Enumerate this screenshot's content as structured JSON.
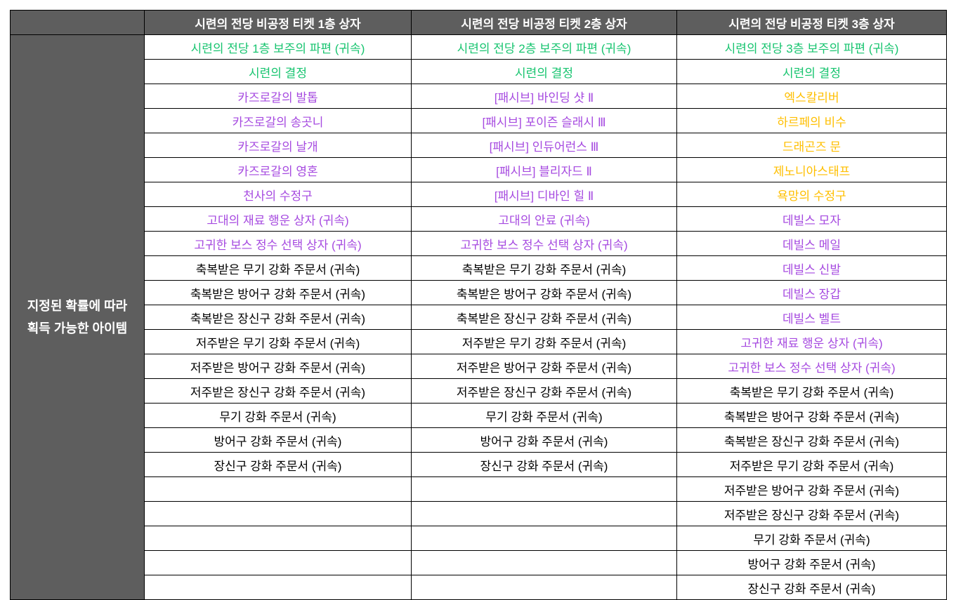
{
  "colors": {
    "page_bg": "#ffffff",
    "header_bg": "#5e5e5e",
    "header_text": "#ffffff",
    "border": "#000000",
    "tier_green": "#17c46f",
    "tier_purple": "#a64ae0",
    "tier_gold": "#ffbf00",
    "tier_normal": "#000000"
  },
  "table": {
    "corner": "",
    "row_count": 23,
    "row_header_lines": [
      "지정된 확률에 따라",
      "획득 가능한 아이템"
    ],
    "columns": [
      {
        "header": "시련의 전당 비공정 티켓 1층 상자",
        "items": [
          {
            "text": "시련의 전당 1층 보주의 파편 (귀속)",
            "tier": "green"
          },
          {
            "text": "시련의 결정",
            "tier": "green"
          },
          {
            "text": "카즈로갈의 발톱",
            "tier": "purple"
          },
          {
            "text": "카즈로갈의 송곳니",
            "tier": "purple"
          },
          {
            "text": "카즈로갈의 날개",
            "tier": "purple"
          },
          {
            "text": "카즈로갈의 영혼",
            "tier": "purple"
          },
          {
            "text": "천사의 수정구",
            "tier": "purple"
          },
          {
            "text": "고대의 재료 행운 상자 (귀속)",
            "tier": "purple"
          },
          {
            "text": "고귀한 보스 정수 선택 상자 (귀속)",
            "tier": "purple"
          },
          {
            "text": "축복받은 무기 강화 주문서 (귀속)",
            "tier": "normal"
          },
          {
            "text": "축복받은 방어구 강화 주문서 (귀속)",
            "tier": "normal"
          },
          {
            "text": "축복받은 장신구 강화 주문서 (귀속)",
            "tier": "normal"
          },
          {
            "text": "저주받은 무기 강화 주문서 (귀속)",
            "tier": "normal"
          },
          {
            "text": "저주받은 방어구 강화 주문서 (귀속)",
            "tier": "normal"
          },
          {
            "text": "저주받은 장신구 강화 주문서 (귀속)",
            "tier": "normal"
          },
          {
            "text": "무기 강화 주문서 (귀속)",
            "tier": "normal"
          },
          {
            "text": "방어구 강화 주문서 (귀속)",
            "tier": "normal"
          },
          {
            "text": "장신구 강화 주문서 (귀속)",
            "tier": "normal"
          }
        ]
      },
      {
        "header": "시련의 전당 비공정 티켓 2층 상자",
        "items": [
          {
            "text": "시련의 전당 2층 보주의 파편 (귀속)",
            "tier": "green"
          },
          {
            "text": "시련의 결정",
            "tier": "green"
          },
          {
            "text": "[패시브] 바인딩 샷 Ⅱ",
            "tier": "purple"
          },
          {
            "text": "[패시브] 포이즌 슬래시 Ⅲ",
            "tier": "purple"
          },
          {
            "text": "[패시브] 인듀어런스 Ⅲ",
            "tier": "purple"
          },
          {
            "text": "[패시브] 블리자드 Ⅱ",
            "tier": "purple"
          },
          {
            "text": "[패시브] 디바인 힐 Ⅱ",
            "tier": "purple"
          },
          {
            "text": "고대의 안료 (귀속)",
            "tier": "purple"
          },
          {
            "text": "고귀한 보스 정수 선택 상자 (귀속)",
            "tier": "purple"
          },
          {
            "text": "축복받은 무기 강화 주문서 (귀속)",
            "tier": "normal"
          },
          {
            "text": "축복받은 방어구 강화 주문서 (귀속)",
            "tier": "normal"
          },
          {
            "text": "축복받은 장신구 강화 주문서 (귀속)",
            "tier": "normal"
          },
          {
            "text": "저주받은 무기 강화 주문서 (귀속)",
            "tier": "normal"
          },
          {
            "text": "저주받은 방어구 강화 주문서 (귀속)",
            "tier": "normal"
          },
          {
            "text": "저주받은 장신구 강화 주문서 (귀속)",
            "tier": "normal"
          },
          {
            "text": "무기 강화 주문서 (귀속)",
            "tier": "normal"
          },
          {
            "text": "방어구 강화 주문서 (귀속)",
            "tier": "normal"
          },
          {
            "text": "장신구 강화 주문서 (귀속)",
            "tier": "normal"
          }
        ]
      },
      {
        "header": "시련의 전당 비공정 티켓 3층 상자",
        "items": [
          {
            "text": "시련의 전당 3층 보주의 파편 (귀속)",
            "tier": "green"
          },
          {
            "text": "시련의 결정",
            "tier": "green"
          },
          {
            "text": "엑스칼리버",
            "tier": "gold"
          },
          {
            "text": "하르페의 비수",
            "tier": "gold"
          },
          {
            "text": "드래곤즈 문",
            "tier": "gold"
          },
          {
            "text": "제노니아스태프",
            "tier": "gold"
          },
          {
            "text": "욕망의 수정구",
            "tier": "gold"
          },
          {
            "text": "데빌스 모자",
            "tier": "purple"
          },
          {
            "text": "데빌스 메일",
            "tier": "purple"
          },
          {
            "text": "데빌스 신발",
            "tier": "purple"
          },
          {
            "text": "데빌스 장갑",
            "tier": "purple"
          },
          {
            "text": "데빌스 벨트",
            "tier": "purple"
          },
          {
            "text": "고귀한 재료 행운 상자 (귀속)",
            "tier": "purple"
          },
          {
            "text": "고귀한 보스 정수 선택 상자 (귀속)",
            "tier": "purple"
          },
          {
            "text": "축복받은 무기 강화 주문서 (귀속)",
            "tier": "normal"
          },
          {
            "text": "축복받은 방어구 강화 주문서 (귀속)",
            "tier": "normal"
          },
          {
            "text": "축복받은 장신구 강화 주문서 (귀속)",
            "tier": "normal"
          },
          {
            "text": "저주받은 무기 강화 주문서 (귀속)",
            "tier": "normal"
          },
          {
            "text": "저주받은 방어구 강화 주문서 (귀속)",
            "tier": "normal"
          },
          {
            "text": "저주받은 장신구 강화 주문서 (귀속)",
            "tier": "normal"
          },
          {
            "text": "무기 강화 주문서 (귀속)",
            "tier": "normal"
          },
          {
            "text": "방어구 강화 주문서 (귀속)",
            "tier": "normal"
          },
          {
            "text": "장신구 강화 주문서 (귀속)",
            "tier": "normal"
          }
        ]
      }
    ]
  }
}
